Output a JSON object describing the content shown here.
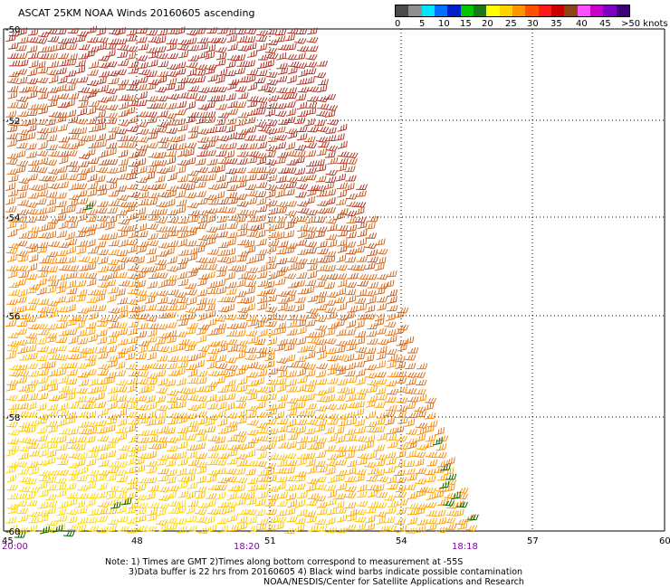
{
  "title": "ASCAT 25KM NOAA Winds 20160605 ascending",
  "legend": {
    "colors": [
      "#4b4b4b",
      "#8f8f8f",
      "#00e5ff",
      "#0070ff",
      "#0020c8",
      "#00c800",
      "#1a7a1a",
      "#ffff00",
      "#ffd200",
      "#ff9600",
      "#ff5000",
      "#ff1a1a",
      "#c80000",
      "#8b4513",
      "#ff4fff",
      "#c800c8",
      "#8000c0",
      "#3c0078"
    ],
    "ticks": [
      "0",
      "5",
      "10",
      "15",
      "20",
      "25",
      "30",
      "35",
      "40",
      "45",
      ">50 knots"
    ]
  },
  "axes": {
    "lat_labels": [
      "-50",
      "-52",
      "-54",
      "-56",
      "-58",
      "-60"
    ],
    "lon_labels": [
      "45",
      "48",
      "51",
      "54",
      "57",
      "60"
    ]
  },
  "times": [
    "20:00",
    "18:20",
    "18:18"
  ],
  "notes": [
    "Note: 1) Times are GMT 2)Times along bottom correspond to measurement at -55S",
    "3)Data buffer is 22 hrs from 20160605 4) Black wind barbs indicate possible contamination",
    "NOAA/NESDIS/Center for Satellite Applications and Research"
  ],
  "wind_field": {
    "units": "knots",
    "swath_color_north": "#d2691e",
    "swath_color_south": "#ffd700",
    "contaminated_barb_color": "#006400"
  }
}
